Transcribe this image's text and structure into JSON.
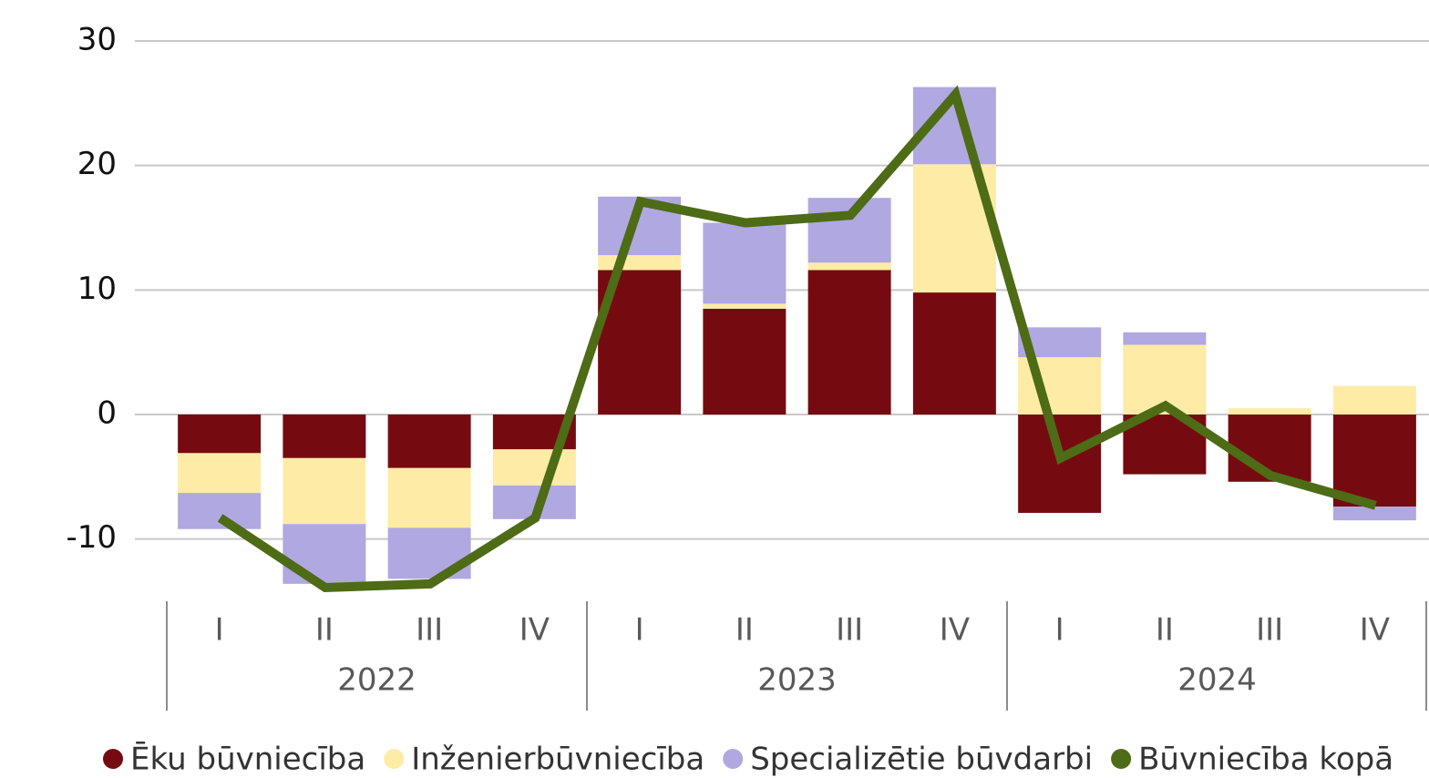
{
  "chart_data": {
    "type": "stacked-bar-line",
    "categories": [
      "I",
      "II",
      "III",
      "IV",
      "I",
      "II",
      "III",
      "IV",
      "I",
      "II",
      "III",
      "IV"
    ],
    "groups": [
      "2022",
      "2023",
      "2024"
    ],
    "series": [
      {
        "name": "Ēku būvniecība",
        "color": "#750b10",
        "kind": "bar",
        "values": [
          -3.1,
          -3.5,
          -4.3,
          -2.8,
          11.6,
          8.5,
          11.6,
          9.8,
          -7.9,
          -4.8,
          -5.4,
          -7.4
        ]
      },
      {
        "name": "Inženierbūvniecība",
        "color": "#fdeba6",
        "kind": "bar",
        "values": [
          -3.2,
          -5.3,
          -4.8,
          -2.9,
          1.2,
          0.4,
          0.6,
          10.3,
          4.6,
          5.6,
          0.5,
          2.3
        ]
      },
      {
        "name": "Specializētie būvdarbi",
        "color": "#b0a8e0",
        "kind": "bar",
        "values": [
          -2.9,
          -4.8,
          -4.1,
          -2.7,
          4.7,
          6.5,
          5.2,
          6.2,
          2.4,
          1.0,
          0,
          -1.1
        ]
      },
      {
        "name": "Būvniecība kopā",
        "color": "#4e6b16",
        "kind": "line",
        "values": [
          -8.3,
          -13.9,
          -13.6,
          -8.3,
          17.1,
          15.4,
          16.0,
          25.7,
          -3.5,
          0.7,
          -4.9,
          -7.3
        ]
      }
    ],
    "ylim": [
      -15,
      30
    ],
    "yticks": [
      -10,
      0,
      10,
      20,
      30
    ],
    "grid": true
  }
}
